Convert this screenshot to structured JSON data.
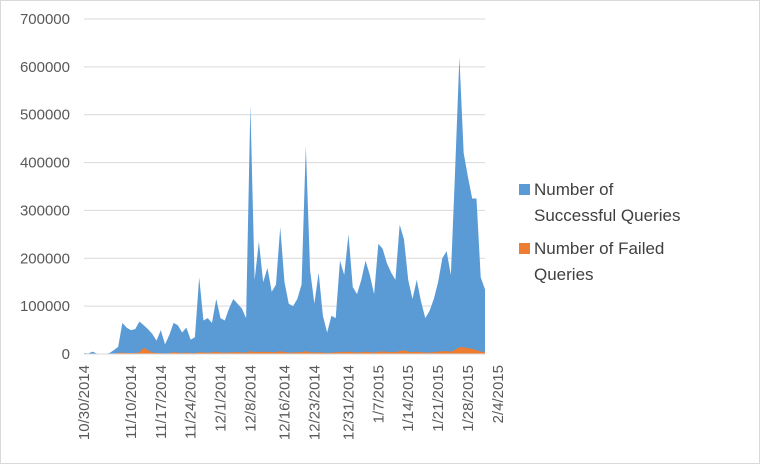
{
  "chart_data": {
    "type": "area",
    "title": "",
    "xlabel": "",
    "ylabel": "",
    "ylim": [
      0,
      700000
    ],
    "y_ticks": [
      "0",
      "100000",
      "200000",
      "300000",
      "400000",
      "500000",
      "600000",
      "700000"
    ],
    "grid": true,
    "legend_position": "right",
    "x_start": "10/30/2014",
    "x_tick_labels": [
      "10/30/2014",
      "11/10/2014",
      "11/17/2014",
      "11/24/2014",
      "12/1/2014",
      "12/8/2014",
      "12/16/2014",
      "12/23/2014",
      "12/31/2014",
      "1/7/2015",
      "1/14/2015",
      "1/21/2015",
      "1/28/2015",
      "2/4/2015"
    ],
    "x_tick_day_offsets": [
      0,
      11,
      18,
      25,
      32,
      39,
      47,
      54,
      62,
      69,
      76,
      83,
      90,
      97
    ],
    "series": [
      {
        "name": "Number of Successful Queries",
        "color": "#5b9bd5",
        "values": [
          2000,
          1000,
          5000,
          1000,
          0,
          0,
          2000,
          8000,
          15000,
          65000,
          55000,
          50000,
          52000,
          68000,
          60000,
          52000,
          42000,
          28000,
          50000,
          20000,
          40000,
          65000,
          60000,
          45000,
          55000,
          30000,
          35000,
          160000,
          70000,
          75000,
          65000,
          115000,
          75000,
          70000,
          95000,
          115000,
          105000,
          95000,
          75000,
          520000,
          155000,
          235000,
          150000,
          180000,
          130000,
          145000,
          265000,
          150000,
          105000,
          100000,
          115000,
          145000,
          435000,
          175000,
          105000,
          170000,
          80000,
          45000,
          80000,
          75000,
          195000,
          165000,
          250000,
          140000,
          125000,
          155000,
          195000,
          165000,
          125000,
          230000,
          220000,
          190000,
          170000,
          155000,
          270000,
          240000,
          155000,
          115000,
          155000,
          110000,
          75000,
          90000,
          115000,
          150000,
          200000,
          215000,
          165000,
          385000,
          620000,
          420000,
          370000,
          325000,
          325000,
          160000,
          135000
        ]
      },
      {
        "name": "Number of Failed Queries",
        "color": "#ed7d31",
        "values": [
          0,
          0,
          0,
          0,
          0,
          0,
          0,
          1000,
          2000,
          3000,
          2000,
          2000,
          2000,
          4000,
          13000,
          8000,
          3000,
          2000,
          2000,
          1000,
          2000,
          4000,
          3000,
          2000,
          3000,
          2000,
          2000,
          4000,
          3000,
          3000,
          3000,
          5000,
          3000,
          3000,
          3000,
          4000,
          4000,
          3000,
          3000,
          6000,
          4000,
          5000,
          4000,
          5000,
          4000,
          4000,
          6000,
          4000,
          3000,
          3000,
          4000,
          4000,
          6000,
          4000,
          3000,
          4000,
          3000,
          2000,
          3000,
          3000,
          5000,
          4000,
          5000,
          4000,
          3000,
          4000,
          5000,
          4000,
          3000,
          5000,
          5000,
          5000,
          4000,
          4000,
          6000,
          8000,
          5000,
          4000,
          5000,
          4000,
          3000,
          3000,
          4000,
          5000,
          6000,
          6000,
          5000,
          9000,
          14000,
          14000,
          12000,
          11000,
          8000,
          5000,
          4000
        ]
      }
    ]
  }
}
